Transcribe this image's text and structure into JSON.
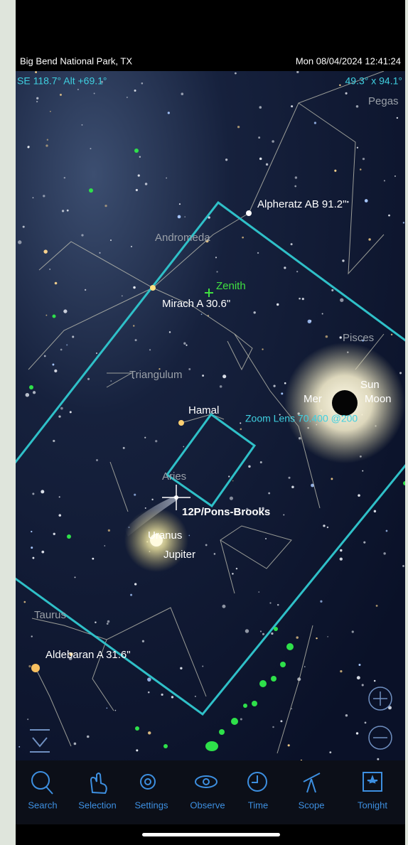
{
  "header": {
    "location": "Big Bend National Park, TX",
    "datetime": "Mon 08/04/2024 12:41:24",
    "pointing": "SE 118.7° Alt +69.1°",
    "field": "49.3° x 94.1°"
  },
  "sky_labels": {
    "pegasus": "Pegas",
    "alpheratz": "Alpheratz AB 91.2\"",
    "andromeda": "Andromeda",
    "zenith": "Zenith",
    "mirach": "Mirach A 30.6\"",
    "pisces": "Pisces",
    "triangulum": "Triangulum",
    "mercury": "Mer",
    "sun": "Sun",
    "moon": "Moon",
    "hamal": "Hamal",
    "zoom_lens": "Zoom Lens 70.400 @200",
    "aries": "Aries",
    "comet": "12P/Pons-Brooks",
    "uranus": "Uranus",
    "jupiter": "Jupiter",
    "taurus": "Taurus",
    "aldebaran": "Aldebaran A 31.6\""
  },
  "toolbar": [
    "Search",
    "Selection",
    "Settings",
    "Observe",
    "Time",
    "Scope",
    "Tonight"
  ]
}
